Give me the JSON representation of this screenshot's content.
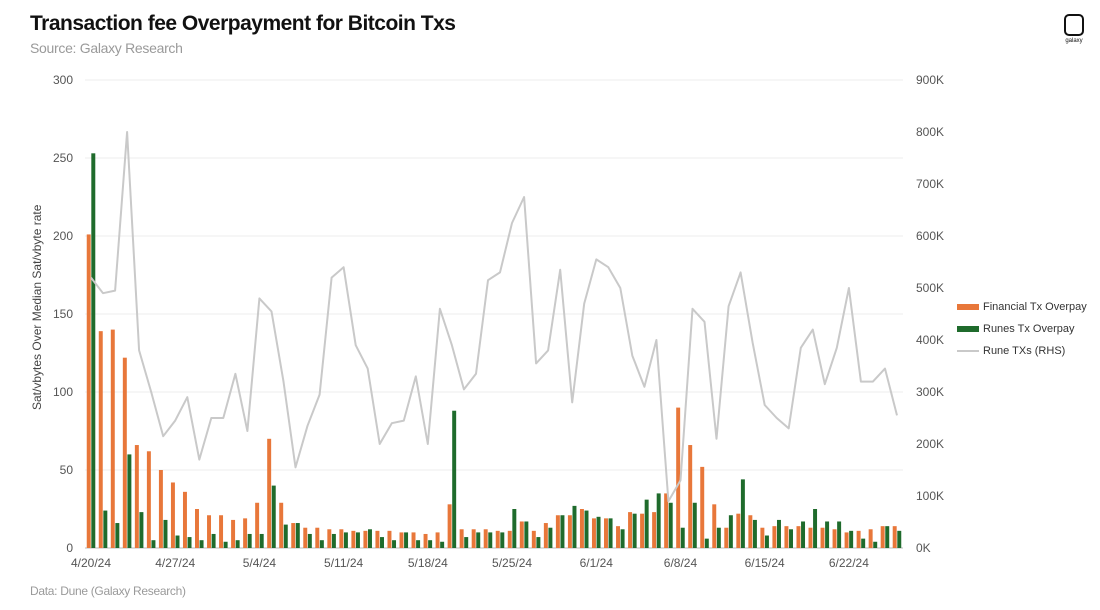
{
  "header": {
    "title": "Transaction fee Overpayment for Bitcoin Txs",
    "subtitle": "Source: Galaxy Research"
  },
  "footer": {
    "text": "Data: Dune (Galaxy Research)"
  },
  "logo": {
    "text": "galaxy"
  },
  "chart_data": {
    "type": "bar",
    "title": "Transaction fee Overpayment for Bitcoin Txs",
    "ylabel": "Sat/vbytes Over Median Sat/vbyte rate",
    "ylim": [
      0,
      300
    ],
    "y2lim": [
      0,
      900000
    ],
    "yticks": [
      "0",
      "50",
      "100",
      "150",
      "200",
      "250",
      "300"
    ],
    "y2ticks": [
      "0K",
      "100K",
      "200K",
      "300K",
      "400K",
      "500K",
      "600K",
      "700K",
      "800K",
      "900K"
    ],
    "x_ticks": [
      "4/20/24",
      "4/27/24",
      "5/4/24",
      "5/11/24",
      "5/18/24",
      "5/25/24",
      "6/1/24",
      "6/8/24",
      "6/15/24",
      "6/22/24"
    ],
    "categories": [
      "4/20/24",
      "4/21/24",
      "4/22/24",
      "4/23/24",
      "4/24/24",
      "4/25/24",
      "4/26/24",
      "4/27/24",
      "4/28/24",
      "4/29/24",
      "4/30/24",
      "5/1/24",
      "5/2/24",
      "5/3/24",
      "5/4/24",
      "5/5/24",
      "5/6/24",
      "5/7/24",
      "5/8/24",
      "5/9/24",
      "5/10/24",
      "5/11/24",
      "5/12/24",
      "5/13/24",
      "5/14/24",
      "5/15/24",
      "5/16/24",
      "5/17/24",
      "5/18/24",
      "5/19/24",
      "5/20/24",
      "5/21/24",
      "5/22/24",
      "5/23/24",
      "5/24/24",
      "5/25/24",
      "5/26/24",
      "5/27/24",
      "5/28/24",
      "5/29/24",
      "5/30/24",
      "5/31/24",
      "6/1/24",
      "6/2/24",
      "6/3/24",
      "6/4/24",
      "6/5/24",
      "6/6/24",
      "6/7/24",
      "6/8/24",
      "6/9/24",
      "6/10/24",
      "6/11/24",
      "6/12/24",
      "6/13/24",
      "6/14/24",
      "6/15/24",
      "6/16/24",
      "6/17/24",
      "6/18/24",
      "6/19/24",
      "6/20/24",
      "6/21/24",
      "6/22/24",
      "6/23/24",
      "6/24/24",
      "6/25/24",
      "6/26/24"
    ],
    "series": [
      {
        "name": "Financial Tx Overpay",
        "axis": "left",
        "kind": "bar",
        "color": "#e8773a",
        "values": [
          201,
          139,
          140,
          122,
          66,
          62,
          50,
          42,
          36,
          25,
          21,
          21,
          18,
          19,
          29,
          70,
          29,
          16,
          13,
          13,
          12,
          12,
          11,
          11,
          11,
          11,
          10,
          10,
          9,
          10,
          28,
          12,
          12,
          12,
          11,
          11,
          17,
          11,
          16,
          21,
          21,
          25,
          19,
          19,
          14,
          23,
          22,
          23,
          35,
          90,
          66,
          52,
          28,
          13,
          22,
          21,
          13,
          14,
          14,
          14,
          13,
          13,
          12,
          10,
          11,
          12,
          14,
          14
        ]
      },
      {
        "name": "Runes Tx Overpay",
        "axis": "left",
        "kind": "bar",
        "color": "#1f6b2c",
        "values": [
          253,
          24,
          16,
          60,
          23,
          5,
          18,
          8,
          7,
          5,
          9,
          4,
          5,
          9,
          9,
          40,
          15,
          16,
          9,
          5,
          9,
          10,
          10,
          12,
          7,
          5,
          10,
          5,
          5,
          4,
          88,
          7,
          10,
          10,
          10,
          25,
          17,
          7,
          13,
          21,
          27,
          24,
          20,
          19,
          12,
          22,
          31,
          35,
          29,
          13,
          29,
          6,
          13,
          21,
          44,
          18,
          8,
          18,
          12,
          17,
          25,
          17,
          17,
          11,
          6,
          4,
          14,
          11
        ]
      },
      {
        "name": "Rune TXs (RHS)",
        "axis": "right",
        "kind": "line",
        "color": "#c9c9c9",
        "values": [
          520000,
          490000,
          495000,
          800000,
          380000,
          300000,
          215000,
          245000,
          290000,
          170000,
          250000,
          250000,
          335000,
          225000,
          480000,
          455000,
          320000,
          155000,
          235000,
          295000,
          520000,
          540000,
          390000,
          345000,
          200000,
          240000,
          245000,
          330000,
          200000,
          460000,
          390000,
          305000,
          335000,
          515000,
          530000,
          625000,
          675000,
          355000,
          380000,
          535000,
          280000,
          470000,
          555000,
          540000,
          500000,
          370000,
          310000,
          400000,
          90000,
          130000,
          460000,
          435000,
          210000,
          465000,
          530000,
          395000,
          275000,
          250000,
          230000,
          385000,
          420000,
          315000,
          385000,
          500000,
          320000,
          320000,
          345000,
          255000
        ]
      }
    ],
    "legend_position": "right",
    "grid": true
  }
}
